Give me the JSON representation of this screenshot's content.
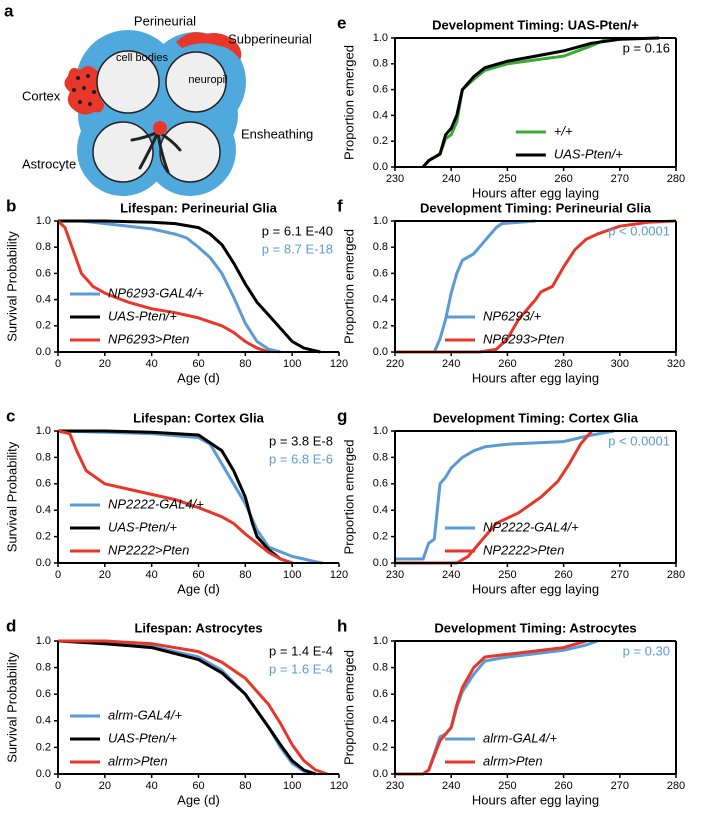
{
  "diagram": {
    "panel": "a",
    "labels": [
      "Perineurial",
      "Subperineurial",
      "cell bodies",
      "neuropil",
      "Cortex",
      "Ensheathing",
      "Astrocyte"
    ]
  },
  "chart_data": [
    {
      "panel": "b",
      "type": "line",
      "title": "Lifespan: Perineurial Glia",
      "x_label": "Age (d)",
      "y_label": "Survival Probability",
      "xlim": [
        0,
        120
      ],
      "xticks": [
        0,
        20,
        40,
        60,
        80,
        100,
        120
      ],
      "ylim": [
        0,
        1
      ],
      "yticks": [
        {
          "value": 0,
          "label": "0.0"
        },
        {
          "value": 0.2,
          "label": "0.2"
        },
        {
          "value": 0.4,
          "label": "0.4"
        },
        {
          "value": 0.6,
          "label": "0.6"
        },
        {
          "value": 0.8,
          "label": "0.8"
        },
        {
          "value": 1,
          "label": "1.0"
        }
      ],
      "legend": "lower left",
      "frame": "axes",
      "annotations": [
        {
          "text": "p = 6.1 E-40",
          "color": "#000000"
        },
        {
          "text": "p = 8.7 E-18",
          "color": "#5b9bd5"
        }
      ],
      "series": [
        {
          "name": "NP6293-GAL4/+",
          "color": "#5b9bd5",
          "x": [
            0,
            10,
            20,
            30,
            40,
            50,
            55,
            60,
            65,
            70,
            75,
            80,
            85,
            90,
            95
          ],
          "values": [
            1,
            1,
            0.98,
            0.96,
            0.94,
            0.9,
            0.87,
            0.8,
            0.72,
            0.6,
            0.42,
            0.22,
            0.08,
            0.02,
            0
          ]
        },
        {
          "name": "UAS-Pten/+",
          "color": "#000000",
          "x": [
            0,
            20,
            40,
            50,
            60,
            65,
            70,
            75,
            80,
            85,
            90,
            95,
            100,
            105,
            112
          ],
          "values": [
            1,
            1,
            0.99,
            0.98,
            0.95,
            0.9,
            0.82,
            0.68,
            0.52,
            0.38,
            0.28,
            0.18,
            0.08,
            0.03,
            0
          ]
        },
        {
          "name": "NP6293>Pten",
          "color": "#e8372a",
          "x": [
            0,
            3,
            5,
            8,
            10,
            15,
            20,
            30,
            40,
            50,
            60,
            70,
            75,
            80,
            85,
            90
          ],
          "values": [
            1,
            0.95,
            0.85,
            0.7,
            0.6,
            0.5,
            0.45,
            0.38,
            0.33,
            0.3,
            0.26,
            0.2,
            0.15,
            0.08,
            0.03,
            0
          ]
        }
      ]
    },
    {
      "panel": "c",
      "type": "line",
      "title": "Lifespan: Cortex Glia",
      "x_label": "Age (d)",
      "y_label": "Survival Probability",
      "xlim": [
        0,
        120
      ],
      "xticks": [
        0,
        20,
        40,
        60,
        80,
        100,
        120
      ],
      "ylim": [
        0,
        1
      ],
      "yticks": [
        {
          "value": 0,
          "label": "0.0"
        },
        {
          "value": 0.2,
          "label": "0.2"
        },
        {
          "value": 0.4,
          "label": "0.4"
        },
        {
          "value": 0.6,
          "label": "0.6"
        },
        {
          "value": 0.8,
          "label": "0.8"
        },
        {
          "value": 1,
          "label": "1.0"
        }
      ],
      "legend": "lower left",
      "frame": "axes",
      "annotations": [
        {
          "text": "p = 3.8 E-8",
          "color": "#000000"
        },
        {
          "text": "p = 6.8 E-6",
          "color": "#5b9bd5"
        }
      ],
      "series": [
        {
          "name": "NP2222-GAL4/+",
          "color": "#5b9bd5",
          "x": [
            0,
            20,
            40,
            60,
            65,
            70,
            75,
            80,
            85,
            90,
            100,
            110,
            113
          ],
          "values": [
            1,
            0.99,
            0.98,
            0.95,
            0.9,
            0.75,
            0.6,
            0.45,
            0.25,
            0.12,
            0.05,
            0.01,
            0
          ]
        },
        {
          "name": "UAS-Pten/+",
          "color": "#000000",
          "x": [
            0,
            20,
            40,
            60,
            70,
            75,
            80,
            83,
            85,
            90,
            95,
            100
          ],
          "values": [
            1,
            1,
            0.99,
            0.97,
            0.85,
            0.7,
            0.5,
            0.3,
            0.2,
            0.1,
            0.03,
            0
          ]
        },
        {
          "name": "NP2222>Pten",
          "color": "#e8372a",
          "x": [
            0,
            5,
            8,
            12,
            20,
            30,
            40,
            50,
            60,
            70,
            75,
            80,
            85,
            90,
            95,
            100
          ],
          "values": [
            1,
            0.98,
            0.85,
            0.7,
            0.6,
            0.56,
            0.52,
            0.48,
            0.42,
            0.35,
            0.3,
            0.22,
            0.15,
            0.08,
            0.03,
            0
          ]
        }
      ]
    },
    {
      "panel": "d",
      "type": "line",
      "title": "Lifespan: Astrocytes",
      "x_label": "Age (d)",
      "y_label": "Survival Probability",
      "xlim": [
        0,
        120
      ],
      "xticks": [
        0,
        20,
        40,
        60,
        80,
        100,
        120
      ],
      "ylim": [
        0,
        1
      ],
      "yticks": [
        {
          "value": 0,
          "label": "0.0"
        },
        {
          "value": 0.2,
          "label": "0.2"
        },
        {
          "value": 0.4,
          "label": "0.4"
        },
        {
          "value": 0.6,
          "label": "0.6"
        },
        {
          "value": 0.8,
          "label": "0.8"
        },
        {
          "value": 1,
          "label": "1.0"
        }
      ],
      "legend": "lower left",
      "frame": "axes",
      "annotations": [
        {
          "text": "p = 1.4 E-4",
          "color": "#000000"
        },
        {
          "text": "p = 1.6 E-4",
          "color": "#5b9bd5"
        }
      ],
      "series": [
        {
          "name": "alrm-GAL4/+",
          "color": "#5b9bd5",
          "x": [
            0,
            20,
            40,
            60,
            70,
            80,
            90,
            95,
            100,
            105,
            110
          ],
          "values": [
            1,
            0.99,
            0.96,
            0.88,
            0.78,
            0.6,
            0.35,
            0.2,
            0.08,
            0.02,
            0
          ]
        },
        {
          "name": "UAS-Pten/+",
          "color": "#000000",
          "x": [
            0,
            20,
            40,
            60,
            70,
            80,
            90,
            95,
            100,
            105,
            110
          ],
          "values": [
            1,
            0.98,
            0.95,
            0.86,
            0.76,
            0.6,
            0.35,
            0.22,
            0.1,
            0.03,
            0
          ]
        },
        {
          "name": "alrm>Pten",
          "color": "#e8372a",
          "x": [
            0,
            20,
            40,
            60,
            70,
            80,
            90,
            95,
            100,
            105,
            110,
            115
          ],
          "values": [
            1,
            1,
            0.98,
            0.92,
            0.84,
            0.72,
            0.52,
            0.38,
            0.22,
            0.1,
            0.03,
            0
          ]
        }
      ]
    },
    {
      "panel": "e",
      "type": "line",
      "title": "Development Timing: UAS-Pten/+",
      "x_label": "Hours after egg laying",
      "y_label": "Proportion emerged",
      "xlim": [
        230,
        280
      ],
      "xticks": [
        230,
        240,
        250,
        260,
        270,
        280
      ],
      "ylim": [
        0,
        1
      ],
      "yticks": [
        {
          "value": 0,
          "label": "0.0"
        },
        {
          "value": 0.2,
          "label": "0.2"
        },
        {
          "value": 0.4,
          "label": "0.4"
        },
        {
          "value": 0.6,
          "label": "0.6"
        },
        {
          "value": 0.8,
          "label": "0.8"
        },
        {
          "value": 1,
          "label": "1.0"
        }
      ],
      "legend": "lower right",
      "frame": "box",
      "annotations": [
        {
          "text": "p = 0.16",
          "color": "#000000"
        }
      ],
      "series": [
        {
          "name": "+/+",
          "color": "#3aaa35",
          "x": [
            235,
            236,
            238,
            239,
            240,
            241,
            242,
            244,
            246,
            250,
            255,
            260,
            265,
            268
          ],
          "values": [
            0,
            0.05,
            0.1,
            0.22,
            0.25,
            0.35,
            0.6,
            0.68,
            0.75,
            0.8,
            0.83,
            0.86,
            0.94,
            1
          ]
        },
        {
          "name": "UAS-Pten/+",
          "color": "#000000",
          "x": [
            235,
            236,
            238,
            239,
            240,
            241,
            242,
            244,
            246,
            250,
            255,
            260,
            265,
            270,
            277
          ],
          "values": [
            0,
            0.05,
            0.1,
            0.25,
            0.3,
            0.4,
            0.6,
            0.7,
            0.77,
            0.82,
            0.86,
            0.9,
            0.96,
            0.99,
            1
          ]
        }
      ]
    },
    {
      "panel": "f",
      "type": "line",
      "title": "Development Timing: Perineurial Glia",
      "x_label": "Hours after egg laying",
      "y_label": "Proportion emerged",
      "xlim": [
        220,
        320
      ],
      "xticks": [
        220,
        240,
        260,
        280,
        300,
        320
      ],
      "ylim": [
        0,
        1
      ],
      "yticks": [
        {
          "value": 0,
          "label": "0.0"
        },
        {
          "value": 0.2,
          "label": "0.2"
        },
        {
          "value": 0.4,
          "label": "0.4"
        },
        {
          "value": 0.6,
          "label": "0.6"
        },
        {
          "value": 0.8,
          "label": "0.8"
        },
        {
          "value": 1,
          "label": "1.0"
        }
      ],
      "legend": "lower center",
      "frame": "box",
      "annotations": [
        {
          "text": "p < 0.0001",
          "color": "#5b9bd5"
        }
      ],
      "series": [
        {
          "name": "NP6293/+",
          "color": "#5b9bd5",
          "x": [
            220,
            234,
            236,
            238,
            240,
            242,
            244,
            248,
            252,
            256,
            258,
            270
          ],
          "values": [
            0,
            0,
            0.1,
            0.25,
            0.45,
            0.6,
            0.7,
            0.75,
            0.85,
            0.95,
            0.98,
            1
          ]
        },
        {
          "name": "NP6293>Pten",
          "color": "#e8372a",
          "x": [
            220,
            250,
            256,
            260,
            264,
            268,
            270,
            272,
            276,
            280,
            284,
            288,
            292,
            300,
            310,
            320
          ],
          "values": [
            0,
            0,
            0.02,
            0.1,
            0.25,
            0.35,
            0.4,
            0.46,
            0.5,
            0.65,
            0.78,
            0.86,
            0.9,
            0.96,
            0.99,
            1
          ]
        }
      ]
    },
    {
      "panel": "g",
      "type": "line",
      "title": "Development Timing: Cortex Glia",
      "x_label": "Hours after egg laying",
      "y_label": "Proportion emerged",
      "xlim": [
        230,
        280
      ],
      "xticks": [
        230,
        240,
        250,
        260,
        270,
        280
      ],
      "ylim": [
        0,
        1
      ],
      "yticks": [
        {
          "value": 0,
          "label": "0.0"
        },
        {
          "value": 0.2,
          "label": "0.2"
        },
        {
          "value": 0.4,
          "label": "0.4"
        },
        {
          "value": 0.6,
          "label": "0.6"
        },
        {
          "value": 0.8,
          "label": "0.8"
        },
        {
          "value": 1,
          "label": "1.0"
        }
      ],
      "legend": "lower center",
      "frame": "box",
      "annotations": [
        {
          "text": "p < 0.0001",
          "color": "#5b9bd5"
        }
      ],
      "series": [
        {
          "name": "NP2222-GAL4/+",
          "color": "#5b9bd5",
          "x": [
            230,
            235,
            236,
            237,
            238,
            239,
            240,
            242,
            244,
            246,
            250,
            260,
            265,
            269
          ],
          "values": [
            0.03,
            0.03,
            0.15,
            0.18,
            0.6,
            0.65,
            0.72,
            0.8,
            0.85,
            0.88,
            0.9,
            0.92,
            0.97,
            1
          ]
        },
        {
          "name": "NP2222>Pten",
          "color": "#e8372a",
          "x": [
            230,
            241,
            243,
            246,
            248,
            252,
            256,
            259,
            261,
            263,
            265
          ],
          "values": [
            0,
            0,
            0.05,
            0.2,
            0.3,
            0.38,
            0.5,
            0.62,
            0.75,
            0.9,
            1
          ]
        }
      ]
    },
    {
      "panel": "h",
      "type": "line",
      "title": "Development Timing: Astrocytes",
      "x_label": "Hours after egg laying",
      "y_label": "Proportion emerged",
      "xlim": [
        230,
        280
      ],
      "xticks": [
        230,
        240,
        250,
        260,
        270,
        280
      ],
      "ylim": [
        0,
        1
      ],
      "yticks": [
        {
          "value": 0,
          "label": "0.0"
        },
        {
          "value": 0.2,
          "label": "0.2"
        },
        {
          "value": 0.4,
          "label": "0.4"
        },
        {
          "value": 0.6,
          "label": "0.6"
        },
        {
          "value": 0.8,
          "label": "0.8"
        },
        {
          "value": 1,
          "label": "1.0"
        }
      ],
      "legend": "lower center",
      "frame": "box",
      "annotations": [
        {
          "text": "p = 0.30",
          "color": "#5b9bd5"
        }
      ],
      "series": [
        {
          "name": "alrm-GAL4/+",
          "color": "#5b9bd5",
          "x": [
            230,
            235,
            236,
            238,
            239,
            240,
            241,
            242,
            244,
            246,
            250,
            260,
            264,
            266
          ],
          "values": [
            0,
            0,
            0.03,
            0.28,
            0.3,
            0.35,
            0.5,
            0.62,
            0.75,
            0.85,
            0.88,
            0.93,
            0.97,
            1
          ]
        },
        {
          "name": "alrm>Pten",
          "color": "#e8372a",
          "x": [
            230,
            235,
            236,
            238,
            239,
            240,
            241,
            242,
            244,
            246,
            250,
            260,
            264
          ],
          "values": [
            0,
            0,
            0.03,
            0.25,
            0.3,
            0.35,
            0.52,
            0.65,
            0.8,
            0.88,
            0.9,
            0.95,
            1
          ]
        }
      ]
    }
  ]
}
